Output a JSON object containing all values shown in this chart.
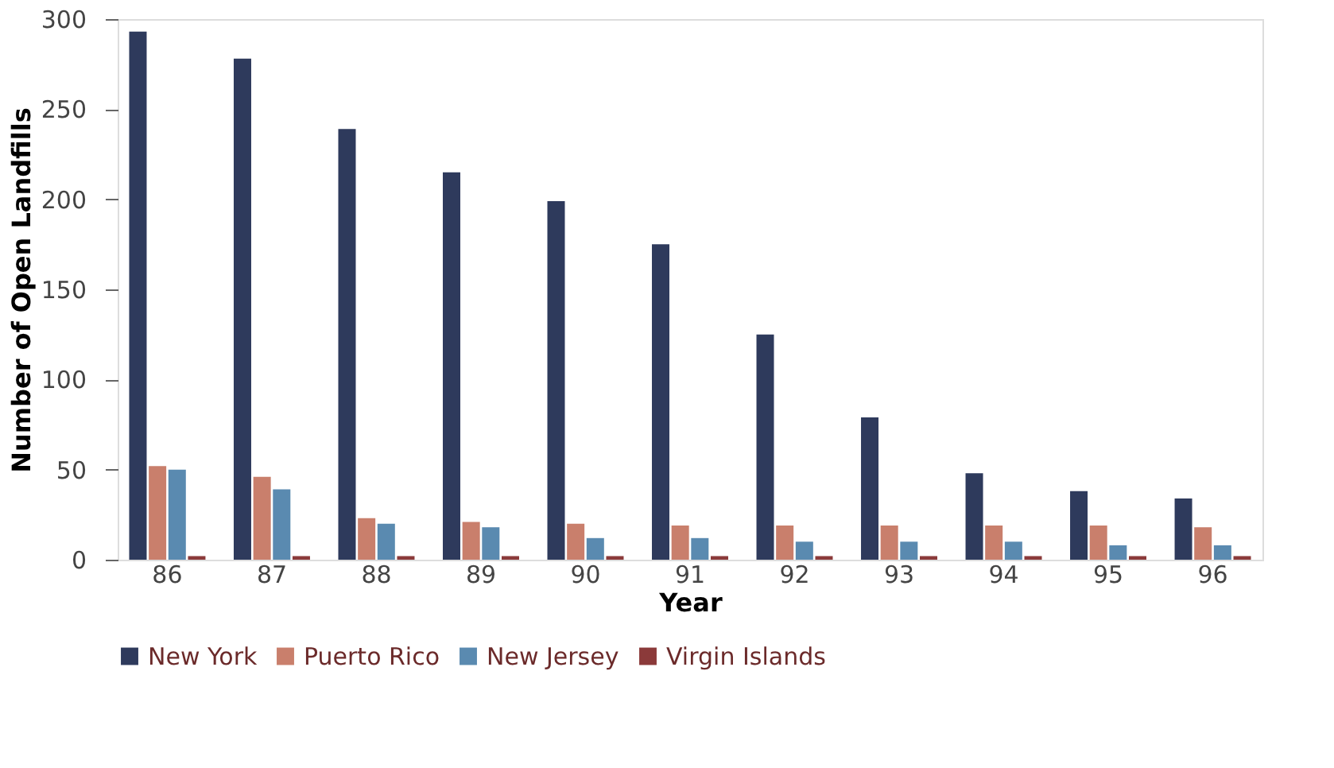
{
  "chart_data": {
    "type": "bar",
    "xlabel": "Year",
    "ylabel": "Number of Open Landfills",
    "categories": [
      "86",
      "87",
      "88",
      "89",
      "90",
      "91",
      "92",
      "93",
      "94",
      "95",
      "96"
    ],
    "series": [
      {
        "name": "New York",
        "color": "#2e3a5c",
        "values": [
          293,
          278,
          239,
          215,
          199,
          175,
          125,
          79,
          48,
          38,
          34
        ]
      },
      {
        "name": "Puerto Rico",
        "color": "#c97f6c",
        "values": [
          52,
          46,
          23,
          21,
          20,
          19,
          19,
          19,
          19,
          19,
          18
        ]
      },
      {
        "name": "New Jersey",
        "color": "#5a8ab0",
        "values": [
          50,
          39,
          20,
          18,
          12,
          12,
          10,
          10,
          10,
          8,
          8
        ]
      },
      {
        "name": "Virgin Islands",
        "color": "#8b3a3a",
        "values": [
          2,
          2,
          2,
          2,
          2,
          2,
          2,
          2,
          2,
          2,
          2
        ]
      }
    ],
    "ylim": [
      0,
      300
    ],
    "yticks": [
      0,
      50,
      100,
      150,
      200,
      250,
      300
    ],
    "grid": false,
    "legend": "bottom"
  }
}
